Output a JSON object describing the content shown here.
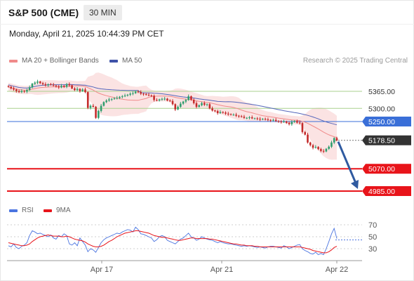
{
  "header": {
    "title": "S&P 500 (CME)",
    "interval": "30 MIN",
    "datetime": "Monday, April 21, 2025 10:44:39 PM CET"
  },
  "legend": {
    "bollinger": "MA 20 + Bollinger Bands",
    "ma50": "MA 50",
    "credit": "Research © 2025 Trading Central"
  },
  "rsi_legend": {
    "rsi": "RSI",
    "ma9": "9MA"
  },
  "colors": {
    "up": "#2e9e6e",
    "down": "#c42a2a",
    "ma20": "#f08a8a",
    "band_fill": "#fbe3e3",
    "ma50": "#5566bb",
    "resistance": "#a9d18e",
    "pivot": "#3a6fd8",
    "support": "#e8141a",
    "current": "#333333",
    "arrow": "#2f5aa0",
    "rsi": "#4a74e0",
    "rsi_ma": "#e8141a"
  },
  "chart_data": [
    {
      "type": "candlestick",
      "title": "S&P 500 (CME) 30 MIN",
      "x_ticks": [
        "Apr 17",
        "Apr 21",
        "Apr 22"
      ],
      "levels": [
        {
          "label": "5365.00",
          "value": 5365,
          "kind": "resistance"
        },
        {
          "label": "5300.00",
          "value": 5300,
          "kind": "resistance"
        },
        {
          "label": "5250.00",
          "value": 5250,
          "kind": "pivot"
        },
        {
          "label": "5178.50",
          "value": 5178.5,
          "kind": "current"
        },
        {
          "label": "5070.00",
          "value": 5070,
          "kind": "support"
        },
        {
          "label": "4985.00",
          "value": 4985,
          "kind": "support"
        }
      ],
      "forecast_arrow": {
        "from": 5178.5,
        "to": 4985
      },
      "ohlc_close": [
        5382,
        5376,
        5372,
        5366,
        5362,
        5366,
        5364,
        5370,
        5380,
        5394,
        5398,
        5402,
        5396,
        5392,
        5388,
        5392,
        5390,
        5387,
        5384,
        5380,
        5386,
        5382,
        5392,
        5388,
        5376,
        5370,
        5374,
        5366,
        5372,
        5362,
        5302,
        5310,
        5306,
        5264,
        5290,
        5310,
        5324,
        5330,
        5334,
        5336,
        5338,
        5340,
        5344,
        5346,
        5349,
        5352,
        5356,
        5358,
        5364,
        5362,
        5356,
        5354,
        5352,
        5350,
        5348,
        5332,
        5330,
        5334,
        5336,
        5337,
        5330,
        5328,
        5316,
        5296,
        5306,
        5318,
        5326,
        5332,
        5346,
        5333,
        5320,
        5306,
        5312,
        5320,
        5314,
        5316,
        5300,
        5292,
        5290,
        5282,
        5286,
        5284,
        5280,
        5278,
        5276,
        5276,
        5272,
        5270,
        5268,
        5264,
        5264,
        5266,
        5262,
        5262,
        5260,
        5258,
        5260,
        5258,
        5256,
        5254,
        5256,
        5252,
        5250,
        5248,
        5250,
        5245,
        5240,
        5248,
        5252,
        5246,
        5244,
        5210,
        5200,
        5170,
        5160,
        5150,
        5153,
        5145,
        5138,
        5136,
        5146,
        5154,
        5170,
        5187,
        5178
      ]
    },
    {
      "type": "line",
      "series": [
        {
          "name": "RSI"
        },
        {
          "name": "9MA"
        }
      ],
      "y_ticks": [
        30,
        50,
        70
      ],
      "rsi": [
        35,
        33,
        38,
        32,
        30,
        34,
        36,
        40,
        52,
        60,
        58,
        55,
        56,
        54,
        52,
        50,
        53,
        48,
        46,
        52,
        50,
        55,
        52,
        38,
        36,
        40,
        35,
        48,
        42,
        36,
        25,
        30,
        28,
        24,
        32,
        40,
        45,
        48,
        50,
        52,
        54,
        56,
        55,
        58,
        60,
        62,
        61,
        58,
        66,
        62,
        55,
        54,
        52,
        50,
        48,
        42,
        45,
        50,
        52,
        50,
        44,
        42,
        40,
        38,
        42,
        46,
        48,
        52,
        56,
        50,
        48,
        44,
        46,
        50,
        48,
        46,
        45,
        44,
        42,
        40,
        42,
        40,
        39,
        38,
        38,
        37,
        36,
        35,
        34,
        35,
        34,
        35,
        34,
        33,
        32,
        33,
        32,
        31,
        33,
        34,
        34,
        33,
        32,
        31,
        35,
        33,
        30,
        32,
        34,
        36,
        37,
        30,
        27,
        25,
        22,
        21,
        24,
        20,
        22,
        20,
        30,
        42,
        55,
        64,
        47
      ],
      "rsi_ma": [
        40,
        39,
        38,
        37,
        36,
        35,
        35,
        36,
        38,
        42,
        45,
        48,
        50,
        51,
        52,
        53,
        52,
        51,
        51,
        51,
        50,
        50,
        51,
        50,
        48,
        46,
        45,
        44,
        43,
        41,
        38,
        36,
        34,
        33,
        33,
        34,
        36,
        39,
        42,
        44,
        47,
        50,
        52,
        54,
        56,
        57,
        58,
        59,
        60,
        60,
        59,
        58,
        57,
        56,
        54,
        52,
        51,
        50,
        49,
        49,
        48,
        47,
        46,
        45,
        44,
        44,
        45,
        46,
        47,
        48,
        48,
        47,
        47,
        47,
        47,
        47,
        46,
        46,
        45,
        44,
        43,
        42,
        41,
        40,
        39,
        38,
        38,
        37,
        36,
        36,
        35,
        35,
        35,
        34,
        34,
        33,
        33,
        33,
        33,
        33,
        33,
        33,
        33,
        33,
        33,
        33,
        33,
        33,
        33,
        33,
        33,
        32,
        31,
        30,
        29,
        27,
        26,
        25,
        24,
        23,
        23,
        25,
        28,
        32,
        34
      ]
    }
  ]
}
